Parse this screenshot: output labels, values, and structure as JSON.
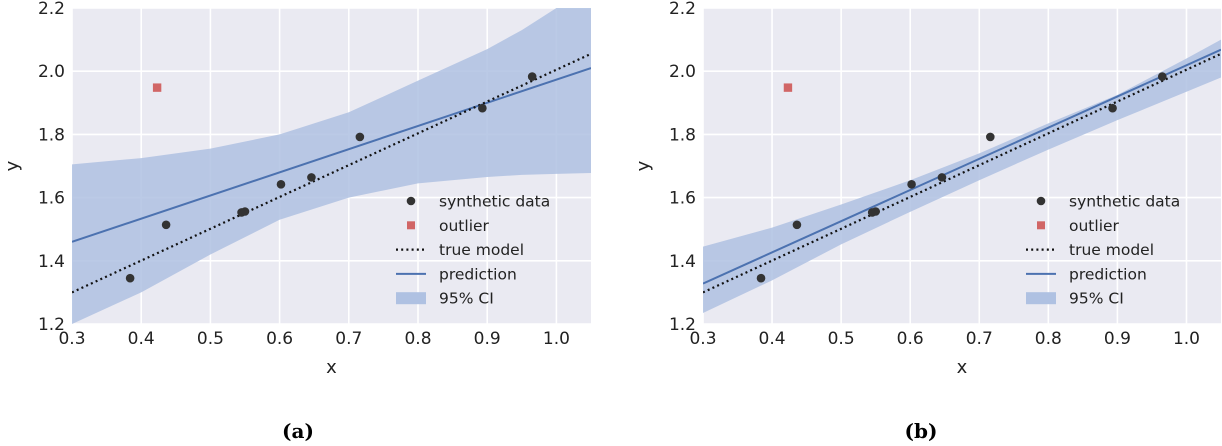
{
  "chart_data": [
    {
      "id": "a",
      "caption": "(a)",
      "type": "scatter",
      "xlabel": "x",
      "ylabel": "y",
      "xlim": [
        0.3,
        1.05
      ],
      "ylim": [
        1.2,
        2.2
      ],
      "xticks": [
        "0.3",
        "0.4",
        "0.5",
        "0.6",
        "0.7",
        "0.8",
        "0.9",
        "1.0"
      ],
      "yticks": [
        "1.2",
        "1.4",
        "1.6",
        "1.8",
        "2.0",
        "2.2"
      ],
      "grid": true,
      "legend_position": "lower-right",
      "legend": [
        "synthetic data",
        "outlier",
        "true model",
        "prediction",
        "95% CI"
      ],
      "synthetic_data": {
        "x": [
          0.384,
          0.436,
          0.545,
          0.55,
          0.602,
          0.646,
          0.716,
          0.893,
          0.965
        ],
        "y": [
          1.345,
          1.514,
          1.553,
          1.556,
          1.642,
          1.664,
          1.792,
          1.883,
          1.983
        ]
      },
      "outlier": {
        "x": [
          0.423
        ],
        "y": [
          1.948
        ]
      },
      "true_model": {
        "x": [
          0.3,
          1.05
        ],
        "y": [
          1.3,
          2.055
        ]
      },
      "prediction": {
        "x": [
          0.3,
          1.05
        ],
        "y": [
          1.46,
          2.01
        ]
      },
      "ci": {
        "x": [
          0.3,
          0.4,
          0.5,
          0.6,
          0.7,
          0.8,
          0.9,
          0.95,
          1.0,
          1.05
        ],
        "upper": [
          1.705,
          1.725,
          1.755,
          1.8,
          1.87,
          1.97,
          2.07,
          2.13,
          2.2,
          2.27
        ],
        "lower": [
          1.2,
          1.3,
          1.42,
          1.53,
          1.6,
          1.645,
          1.665,
          1.672,
          1.675,
          1.678
        ]
      }
    },
    {
      "id": "b",
      "caption": "(b)",
      "type": "scatter",
      "xlabel": "x",
      "ylabel": "y",
      "xlim": [
        0.3,
        1.05
      ],
      "ylim": [
        1.2,
        2.2
      ],
      "xticks": [
        "0.3",
        "0.4",
        "0.5",
        "0.6",
        "0.7",
        "0.8",
        "0.9",
        "1.0"
      ],
      "yticks": [
        "1.2",
        "1.4",
        "1.6",
        "1.8",
        "2.0",
        "2.2"
      ],
      "grid": true,
      "legend_position": "lower-right",
      "legend": [
        "synthetic data",
        "outlier",
        "true model",
        "prediction",
        "95% CI"
      ],
      "synthetic_data": {
        "x": [
          0.384,
          0.436,
          0.545,
          0.55,
          0.602,
          0.646,
          0.716,
          0.893,
          0.965
        ],
        "y": [
          1.345,
          1.514,
          1.553,
          1.556,
          1.642,
          1.664,
          1.792,
          1.883,
          1.983
        ]
      },
      "outlier": {
        "x": [
          0.423
        ],
        "y": [
          1.948
        ]
      },
      "true_model": {
        "x": [
          0.3,
          1.05
        ],
        "y": [
          1.3,
          2.055
        ]
      },
      "prediction": {
        "x": [
          0.3,
          1.05
        ],
        "y": [
          1.328,
          2.068
        ]
      },
      "ci": {
        "x": [
          0.3,
          0.4,
          0.5,
          0.6,
          0.7,
          0.8,
          0.9,
          1.0,
          1.05
        ],
        "upper": [
          1.445,
          1.505,
          1.578,
          1.655,
          1.74,
          1.835,
          1.925,
          2.04,
          2.1
        ],
        "lower": [
          1.235,
          1.338,
          1.452,
          1.555,
          1.655,
          1.752,
          1.845,
          1.935,
          1.98
        ]
      }
    }
  ],
  "colors": {
    "panel_bg": "#EAEAF2",
    "grid": "#FFFFFF",
    "data_point": "#333333",
    "outlier": "#D16666",
    "true_model": "#111111",
    "prediction": "#4C72B0",
    "ci_fill": "#AFC1E2"
  }
}
